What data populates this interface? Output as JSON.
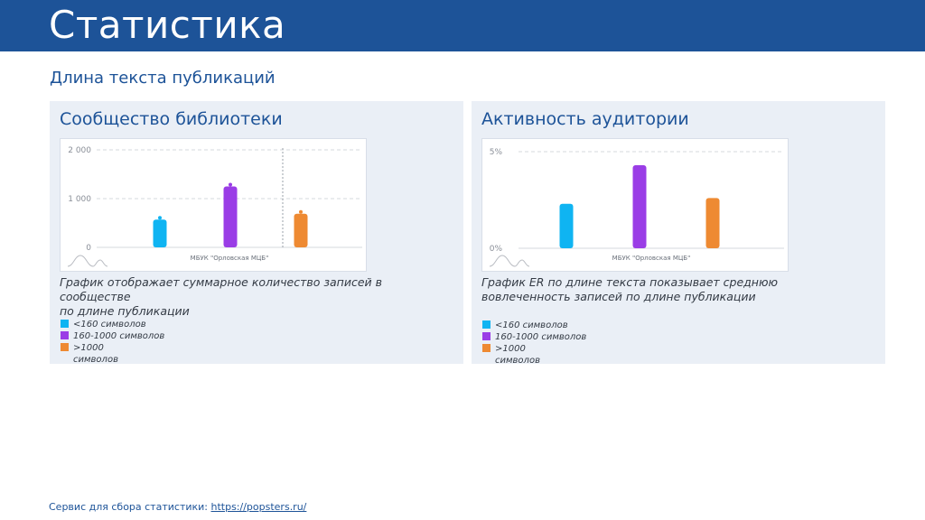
{
  "header": {
    "title": "Статистика"
  },
  "subtitle": "Длина текста публикаций",
  "colors": {
    "brand": "#1d5398",
    "lt160": "#0fb4f2",
    "mid": "#9a3de6",
    "gt1000": "#ee8a32"
  },
  "panels": [
    {
      "title": "Сообщество библиотеки",
      "description_lines": [
        "График отображает суммарное количество записей в",
        "сообществе",
        "по длине публикации"
      ],
      "legend": [
        "<160 символов",
        "160-1000 символов",
        ">1000 символов"
      ]
    },
    {
      "title": "Активность аудитории",
      "description_lines": [
        "График ER по длине текста показывает среднюю",
        "вовлеченность записей по длине публикации"
      ],
      "legend": [
        "<160 символов",
        "160-1000 символов",
        ">1000 символов"
      ]
    }
  ],
  "chart_data": [
    {
      "type": "bar",
      "categories": [
        "<160 символов",
        "160-1000 символов",
        ">1000 символов"
      ],
      "values": [
        570,
        1250,
        690
      ],
      "yticks": [
        "2 000",
        "1 000",
        "0"
      ],
      "ytick_values": [
        2000,
        1000,
        0
      ],
      "ylim": [
        0,
        2000
      ],
      "xlabel": "МБУК \"Орловская МЦБ\"",
      "grid": true
    },
    {
      "type": "bar",
      "categories": [
        "<160 символов",
        "160-1000 символов",
        ">1000 символов"
      ],
      "values": [
        2.3,
        4.3,
        2.6
      ],
      "yticks": [
        "5%",
        "0%"
      ],
      "ytick_values": [
        5,
        0
      ],
      "ylim": [
        0,
        5
      ],
      "xlabel": "МБУК \"Орловская МЦБ\"",
      "grid": true
    }
  ],
  "footer": {
    "label": "Сервис для сбора статистики:",
    "link": "https://popsters.ru/"
  }
}
